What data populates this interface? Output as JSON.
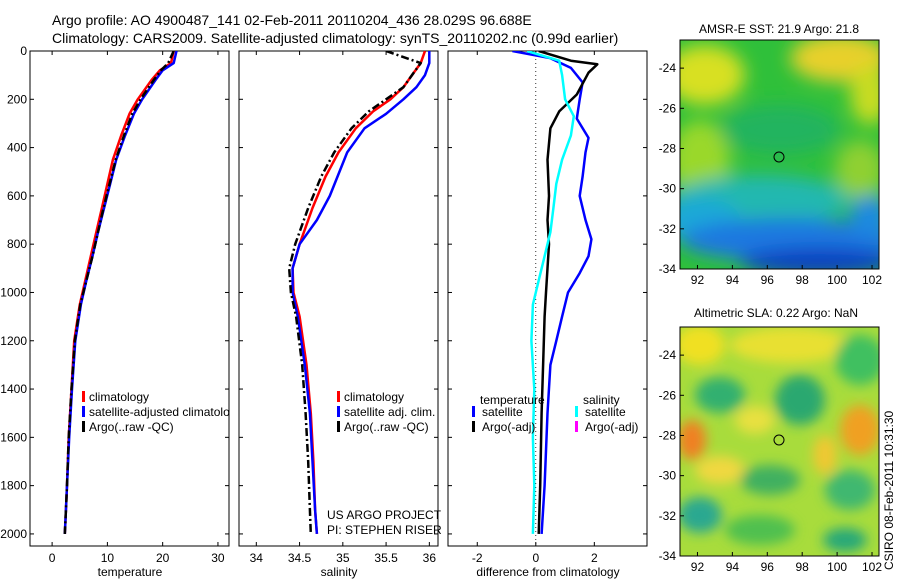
{
  "header": {
    "line1": "Argo profile: AO 4900487_141 02-Feb-2011 20110204_436 28.029S 96.688E",
    "line2": "Climatology: CARS2009. Satellite-adjusted climatology: synTS_20110202.nc (0.99d earlier)"
  },
  "side_label": "CSIRO 08-Feb-2011 10:31:30",
  "colors": {
    "red": "#ff0000",
    "blue": "#0000ff",
    "black": "#000000",
    "cyan": "#00ffff",
    "magenta": "#ff00ff"
  },
  "chart_data": [
    {
      "type": "line",
      "xlabel": "temperature",
      "xlim": [
        -4,
        32
      ],
      "xticks": [
        0,
        10,
        20,
        30
      ],
      "ylim": [
        2050,
        0
      ],
      "yticks": [
        0,
        200,
        400,
        600,
        800,
        1000,
        1200,
        1400,
        1600,
        1800,
        2000
      ],
      "legend": [
        "climatology",
        "satellite-adjusted climatology",
        "Argo(..raw -QC)"
      ],
      "legend_display": [
        "climatology",
        "satellite-adjusted climatolo",
        "Argo(..raw -QC)"
      ],
      "series": [
        {
          "name": "climatology",
          "color": "red",
          "style": "solid",
          "x": [
            22,
            21.5,
            19.5,
            18,
            15.5,
            14,
            12.5,
            11,
            10,
            9,
            8,
            7,
            6,
            5,
            4,
            3.5,
            3,
            2.7,
            2.4,
            2.3
          ],
          "y": [
            0,
            50,
            80,
            120,
            200,
            260,
            350,
            450,
            550,
            650,
            750,
            850,
            950,
            1050,
            1200,
            1400,
            1600,
            1800,
            1950,
            2000
          ]
        },
        {
          "name": "satellite-adjusted climatology",
          "color": "blue",
          "style": "solid",
          "x": [
            22.5,
            22,
            20,
            18.7,
            16.3,
            14.8,
            13.2,
            11.6,
            10.5,
            9.4,
            8.3,
            7.3,
            6.2,
            5.2,
            4.2,
            3.6,
            3.1,
            2.7,
            2.4,
            2.3
          ],
          "y": [
            0,
            50,
            80,
            120,
            200,
            260,
            350,
            450,
            550,
            650,
            750,
            850,
            950,
            1050,
            1200,
            1400,
            1600,
            1800,
            1950,
            2000
          ]
        },
        {
          "name": "Argo(..raw -QC)",
          "color": "black",
          "style": "dashdot",
          "x": [
            22,
            21,
            19.7,
            18.4,
            16,
            14.5,
            13,
            11.5,
            10.4,
            9.3,
            8.3,
            7.3,
            6.2,
            5.1,
            4.1,
            3.5,
            3,
            2.7,
            2.4,
            2.3
          ],
          "y": [
            0,
            50,
            80,
            120,
            200,
            260,
            350,
            450,
            550,
            650,
            750,
            850,
            950,
            1050,
            1200,
            1400,
            1600,
            1800,
            1950,
            2000
          ]
        }
      ]
    },
    {
      "type": "line",
      "xlabel": "salinity",
      "xlim": [
        33.8,
        36.1
      ],
      "xticks": [
        34,
        34.5,
        35,
        35.5,
        36
      ],
      "ylim": [
        2050,
        0
      ],
      "yticks": [
        0,
        200,
        400,
        600,
        800,
        1000,
        1200,
        1400,
        1600,
        1800,
        2000
      ],
      "legend": [
        "climatology",
        "satellite adj. clim.",
        "Argo(..raw -QC)"
      ],
      "annotation": [
        "US ARGO PROJECT",
        "PI: STEPHEN RISER"
      ],
      "series": [
        {
          "name": "climatology",
          "color": "red",
          "style": "solid",
          "x": [
            35.95,
            35.9,
            35.8,
            35.7,
            35.55,
            35.35,
            35.15,
            34.95,
            34.8,
            34.65,
            34.5,
            34.42,
            34.43,
            34.5,
            34.58,
            34.63,
            34.66,
            34.68,
            34.7
          ],
          "y": [
            0,
            50,
            100,
            150,
            200,
            250,
            320,
            420,
            520,
            650,
            800,
            900,
            1000,
            1100,
            1300,
            1500,
            1700,
            1900,
            2000
          ]
        },
        {
          "name": "satellite adj. clim.",
          "color": "blue",
          "style": "solid",
          "x": [
            36,
            36,
            35.95,
            35.85,
            35.7,
            35.5,
            35.25,
            35.05,
            34.85,
            34.7,
            34.5,
            34.42,
            34.42,
            34.48,
            34.56,
            34.62,
            34.65,
            34.68,
            34.7
          ],
          "y": [
            0,
            50,
            100,
            150,
            200,
            260,
            320,
            420,
            600,
            700,
            800,
            900,
            1000,
            1100,
            1300,
            1500,
            1700,
            1900,
            2000
          ]
        },
        {
          "name": "Argo(..raw -QC)",
          "color": "black",
          "style": "dashdot",
          "x": [
            35.5,
            35.9,
            35.8,
            35.7,
            35.5,
            35.3,
            35.1,
            34.9,
            34.75,
            34.6,
            34.45,
            34.38,
            34.4,
            34.46,
            34.53,
            34.57,
            34.6,
            34.62,
            34.63
          ],
          "y": [
            0,
            50,
            100,
            150,
            200,
            250,
            320,
            420,
            520,
            650,
            800,
            900,
            1000,
            1100,
            1300,
            1500,
            1700,
            1900,
            2000
          ]
        }
      ]
    },
    {
      "type": "line",
      "xlabel": "difference from climatology",
      "xlim": [
        -3,
        3.8
      ],
      "xticks": [
        -2,
        0,
        2
      ],
      "ylim": [
        2050,
        0
      ],
      "yticks": [
        0,
        200,
        400,
        600,
        800,
        1000,
        1200,
        1400,
        1600,
        1800,
        2000
      ],
      "legend_headers": [
        "temperature",
        "salinity"
      ],
      "legend": [
        "satellite",
        "Argo(-adj)",
        "satellite",
        "Argo(-adj)"
      ],
      "series": [
        {
          "name": "temperature satellite",
          "color": "blue",
          "style": "solid",
          "x": [
            -0.8,
            0.5,
            1.2,
            1.6,
            1.5,
            1.4,
            1.8,
            1.7,
            1.6,
            1.5,
            1.7,
            1.9,
            1.8,
            1.5,
            1.1,
            0.9,
            0.7,
            0.5,
            0.4,
            0.3,
            0.2
          ],
          "y": [
            0,
            30,
            70,
            130,
            200,
            280,
            360,
            420,
            520,
            600,
            700,
            780,
            850,
            920,
            1000,
            1100,
            1200,
            1300,
            1500,
            1800,
            2000
          ]
        },
        {
          "name": "temperature Argo(-adj)",
          "color": "black",
          "style": "solid",
          "x": [
            0.1,
            1.2,
            2.1,
            1.8,
            1.4,
            0.8,
            0.5,
            0.4,
            0.45,
            0.4,
            0.45,
            0.4,
            0.35,
            0.3,
            0.25,
            0.2,
            0.15,
            0.1
          ],
          "y": [
            0,
            40,
            55,
            90,
            180,
            250,
            320,
            450,
            600,
            700,
            800,
            900,
            1000,
            1100,
            1300,
            1500,
            1800,
            2000
          ]
        },
        {
          "name": "salinity satellite",
          "color": "cyan",
          "style": "solid",
          "x": [
            -0.3,
            0.8,
            0.9,
            1,
            1.3,
            1.2,
            0.9,
            0.7,
            0.6,
            0.5,
            0.3,
            0.1,
            -0.1,
            -0.15,
            -0.05,
            -0.1,
            -0.05,
            -0.1
          ],
          "y": [
            0,
            40,
            100,
            200,
            270,
            350,
            450,
            550,
            650,
            750,
            850,
            950,
            1050,
            1200,
            1400,
            1600,
            1800,
            2000
          ]
        },
        {
          "name": "salinity Argo(-adj)",
          "color": "magenta",
          "style": "solid",
          "x": [],
          "y": []
        }
      ]
    },
    {
      "type": "heatmap",
      "title": "AMSR-E SST: 21.9  Argo: 21.8",
      "xlim": [
        91,
        102.4
      ],
      "xticks": [
        92,
        94,
        96,
        98,
        100,
        102
      ],
      "ylim": [
        -34,
        -22.6
      ],
      "yticks": [
        -24,
        -26,
        -28,
        -30,
        -32,
        -34
      ],
      "marker": {
        "lon": 96.688,
        "lat": -28.029
      }
    },
    {
      "type": "heatmap",
      "title": "Altimetric SLA: 0.22  Argo: NaN",
      "xlim": [
        91,
        102.4
      ],
      "xticks": [
        92,
        94,
        96,
        98,
        100,
        102
      ],
      "ylim": [
        -34,
        -22.6
      ],
      "yticks": [
        -24,
        -26,
        -28,
        -30,
        -32,
        -34
      ],
      "marker": {
        "lon": 96.688,
        "lat": -28.029
      }
    }
  ]
}
